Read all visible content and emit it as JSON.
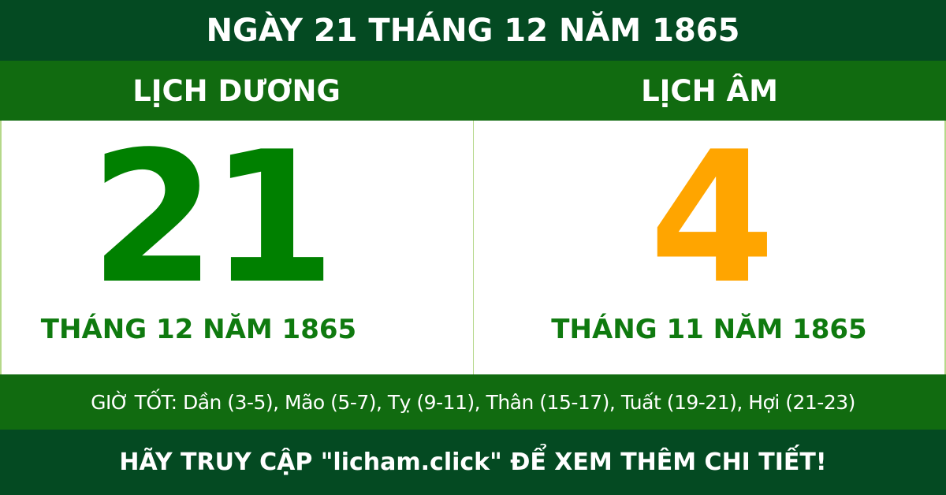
{
  "title": "NGÀY 21 THÁNG 12 NĂM 1865",
  "solar": {
    "heading": "LỊCH DƯƠNG",
    "day": "21",
    "month_year": "THÁNG 12 NĂM 1865"
  },
  "lunar": {
    "heading": "LỊCH ÂM",
    "day": "4",
    "month_year": "THÁNG 11 NĂM 1865"
  },
  "good_hours": "GIỜ TỐT: Dần (3-5), Mão (5-7), Tỵ (9-11), Thân (15-17), Tuất (19-21), Hợi (21-23)",
  "footer": "HÃY TRUY CẬP \"licham.click\" ĐỂ XEM THÊM CHI TIẾT!",
  "colors": {
    "dark_green": "#044a22",
    "green": "#116b10",
    "solar_day": "#008000",
    "lunar_day": "#ffa500"
  }
}
